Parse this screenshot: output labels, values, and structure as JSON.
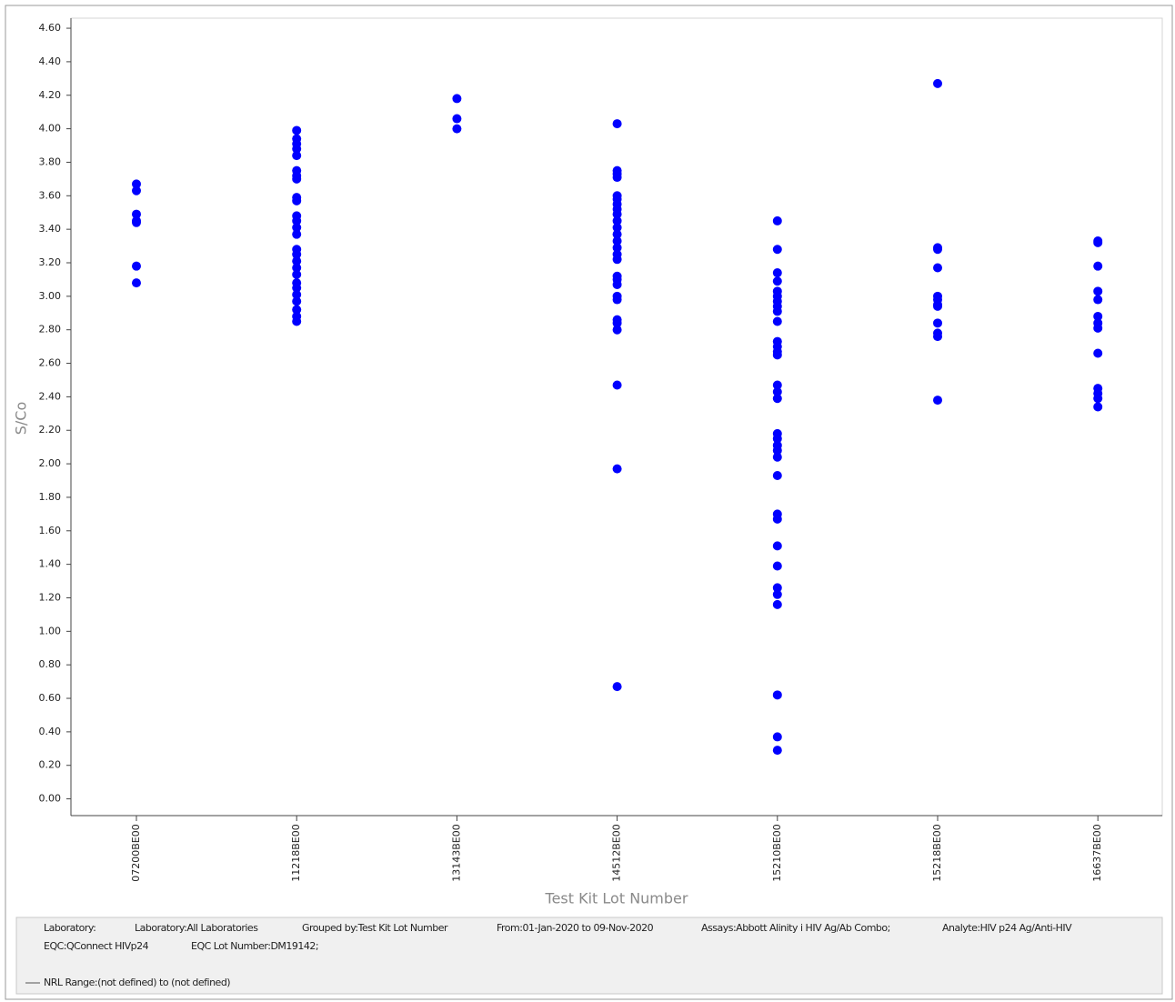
{
  "chart_data": {
    "type": "strip",
    "xlabel": "Test Kit Lot Number",
    "ylabel": "S/Co",
    "categories": [
      "07200BE00",
      "11218BE00",
      "13143BE00",
      "14512BE00",
      "15210BE00",
      "15218BE00",
      "16637BE00"
    ],
    "color": "#0000ff",
    "values": [
      [
        3.67,
        3.63,
        3.49,
        3.45,
        3.44,
        3.18,
        3.08
      ],
      [
        3.99,
        3.94,
        3.91,
        3.88,
        3.84,
        3.75,
        3.72,
        3.7,
        3.59,
        3.57,
        3.48,
        3.45,
        3.41,
        3.37,
        3.28,
        3.25,
        3.21,
        3.17,
        3.13,
        3.08,
        3.05,
        3.01,
        2.97,
        2.92,
        2.88,
        2.85
      ],
      [
        4.18,
        4.06,
        4.0
      ],
      [
        4.03,
        3.75,
        3.73,
        3.71,
        3.6,
        3.58,
        3.55,
        3.52,
        3.49,
        3.45,
        3.41,
        3.37,
        3.33,
        3.29,
        3.25,
        3.22,
        3.12,
        3.1,
        3.07,
        3.0,
        2.98,
        2.86,
        2.84,
        2.8,
        2.47,
        1.97,
        0.67
      ],
      [
        3.45,
        3.28,
        3.14,
        3.09,
        3.03,
        3.0,
        2.97,
        2.94,
        2.91,
        2.85,
        2.73,
        2.7,
        2.67,
        2.65,
        2.47,
        2.43,
        2.39,
        2.18,
        2.15,
        2.11,
        2.08,
        2.04,
        1.93,
        1.7,
        1.67,
        1.51,
        1.39,
        1.26,
        1.22,
        1.16,
        0.62,
        0.37,
        0.29
      ],
      [
        4.27,
        3.29,
        3.28,
        3.17,
        3.0,
        2.98,
        2.95,
        2.94,
        2.84,
        2.78,
        2.76,
        2.38
      ],
      [
        3.33,
        3.32,
        3.18,
        3.03,
        2.98,
        2.88,
        2.84,
        2.81,
        2.66,
        2.45,
        2.42,
        2.39,
        2.34
      ]
    ],
    "ylim": [
      -0.1,
      4.66
    ],
    "yticks": [
      {
        "value": 0,
        "label": "0.00"
      },
      {
        "value": 0.2,
        "label": "0.20"
      },
      {
        "value": 0.4,
        "label": "0.40"
      },
      {
        "value": 0.6,
        "label": "0.60"
      },
      {
        "value": 0.8,
        "label": "0.80"
      },
      {
        "value": 1,
        "label": "1.00"
      },
      {
        "value": 1.2,
        "label": "1.20"
      },
      {
        "value": 1.4,
        "label": "1.40"
      },
      {
        "value": 1.6,
        "label": "1.60"
      },
      {
        "value": 1.8,
        "label": "1.80"
      },
      {
        "value": 2,
        "label": "2.00"
      },
      {
        "value": 2.2,
        "label": "2.20"
      },
      {
        "value": 2.4,
        "label": "2.40"
      },
      {
        "value": 2.6,
        "label": "2.60"
      },
      {
        "value": 2.8,
        "label": "2.80"
      },
      {
        "value": 3,
        "label": "3.00"
      },
      {
        "value": 3.2,
        "label": "3.20"
      },
      {
        "value": 3.4,
        "label": "3.40"
      },
      {
        "value": 3.6,
        "label": "3.60"
      },
      {
        "value": 3.8,
        "label": "3.80"
      },
      {
        "value": 4,
        "label": "4.00"
      },
      {
        "value": 4.2,
        "label": "4.20"
      },
      {
        "value": 4.4,
        "label": "4.40"
      },
      {
        "value": 4.6,
        "label": "4.60"
      }
    ],
    "grid": false,
    "info": [
      "Laboratory:",
      "Laboratory:All Laboratories",
      "Grouped by:Test Kit Lot Number",
      "From:01-Jan-2020 to 09-Nov-2020",
      "Assays:Abbott Alinity i HIV Ag/Ab Combo;",
      "Analyte:HIV p24 Ag/Anti-HIV",
      "EQC:QConnect HIVp24",
      "EQC Lot Number:DM19142;",
      "NRL Range:(not defined) to (not defined)"
    ]
  }
}
